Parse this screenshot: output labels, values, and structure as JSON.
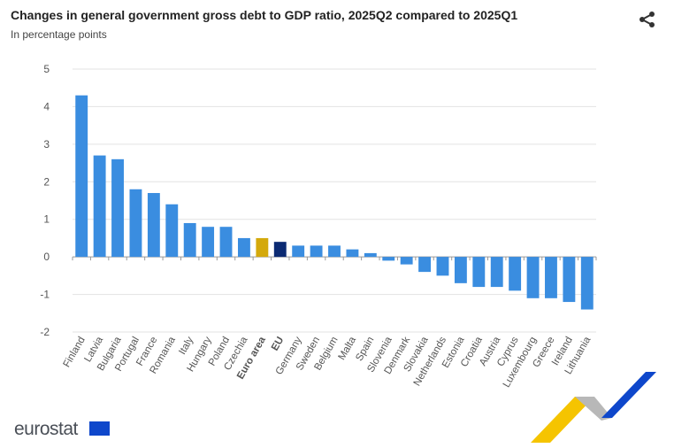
{
  "title": "Changes in general government gross debt to GDP ratio, 2025Q2 compared to 2025Q1",
  "subtitle": "In percentage points",
  "logo_text": "eurostat",
  "share_icon": "share-icon",
  "chart_data": {
    "type": "bar",
    "title": "Changes in general government gross debt to GDP ratio, 2025Q2 compared to 2025Q1",
    "ylabel": "In percentage points",
    "ylim": [
      -2,
      5
    ],
    "yticks": [
      5,
      4,
      3,
      2,
      1,
      0,
      -1,
      -2
    ],
    "grid": true,
    "categories": [
      "Finland",
      "Latvia",
      "Bulgaria",
      "Portugal",
      "France",
      "Romania",
      "Italy",
      "Hungary",
      "Poland",
      "Czechia",
      "Euro area",
      "EU",
      "Germany",
      "Sweden",
      "Belgium",
      "Malta",
      "Spain",
      "Slovenia",
      "Denmark",
      "Slovakia",
      "Netherlands",
      "Estonia",
      "Croatia",
      "Austria",
      "Cyprus",
      "Luxembourg",
      "Greece",
      "Ireland",
      "Lithuania"
    ],
    "values": [
      4.3,
      2.7,
      2.6,
      1.8,
      1.7,
      1.4,
      0.9,
      0.8,
      0.8,
      0.5,
      0.5,
      0.4,
      0.3,
      0.3,
      0.3,
      0.2,
      0.1,
      -0.1,
      -0.2,
      -0.4,
      -0.5,
      -0.7,
      -0.8,
      -0.8,
      -0.9,
      -1.1,
      -1.1,
      -1.2,
      -1.4
    ],
    "bold_categories": [
      "Euro area",
      "EU"
    ],
    "colors": {
      "default": "#3a8de0",
      "Euro area": "#d4a90c",
      "EU": "#0b2a73"
    }
  }
}
